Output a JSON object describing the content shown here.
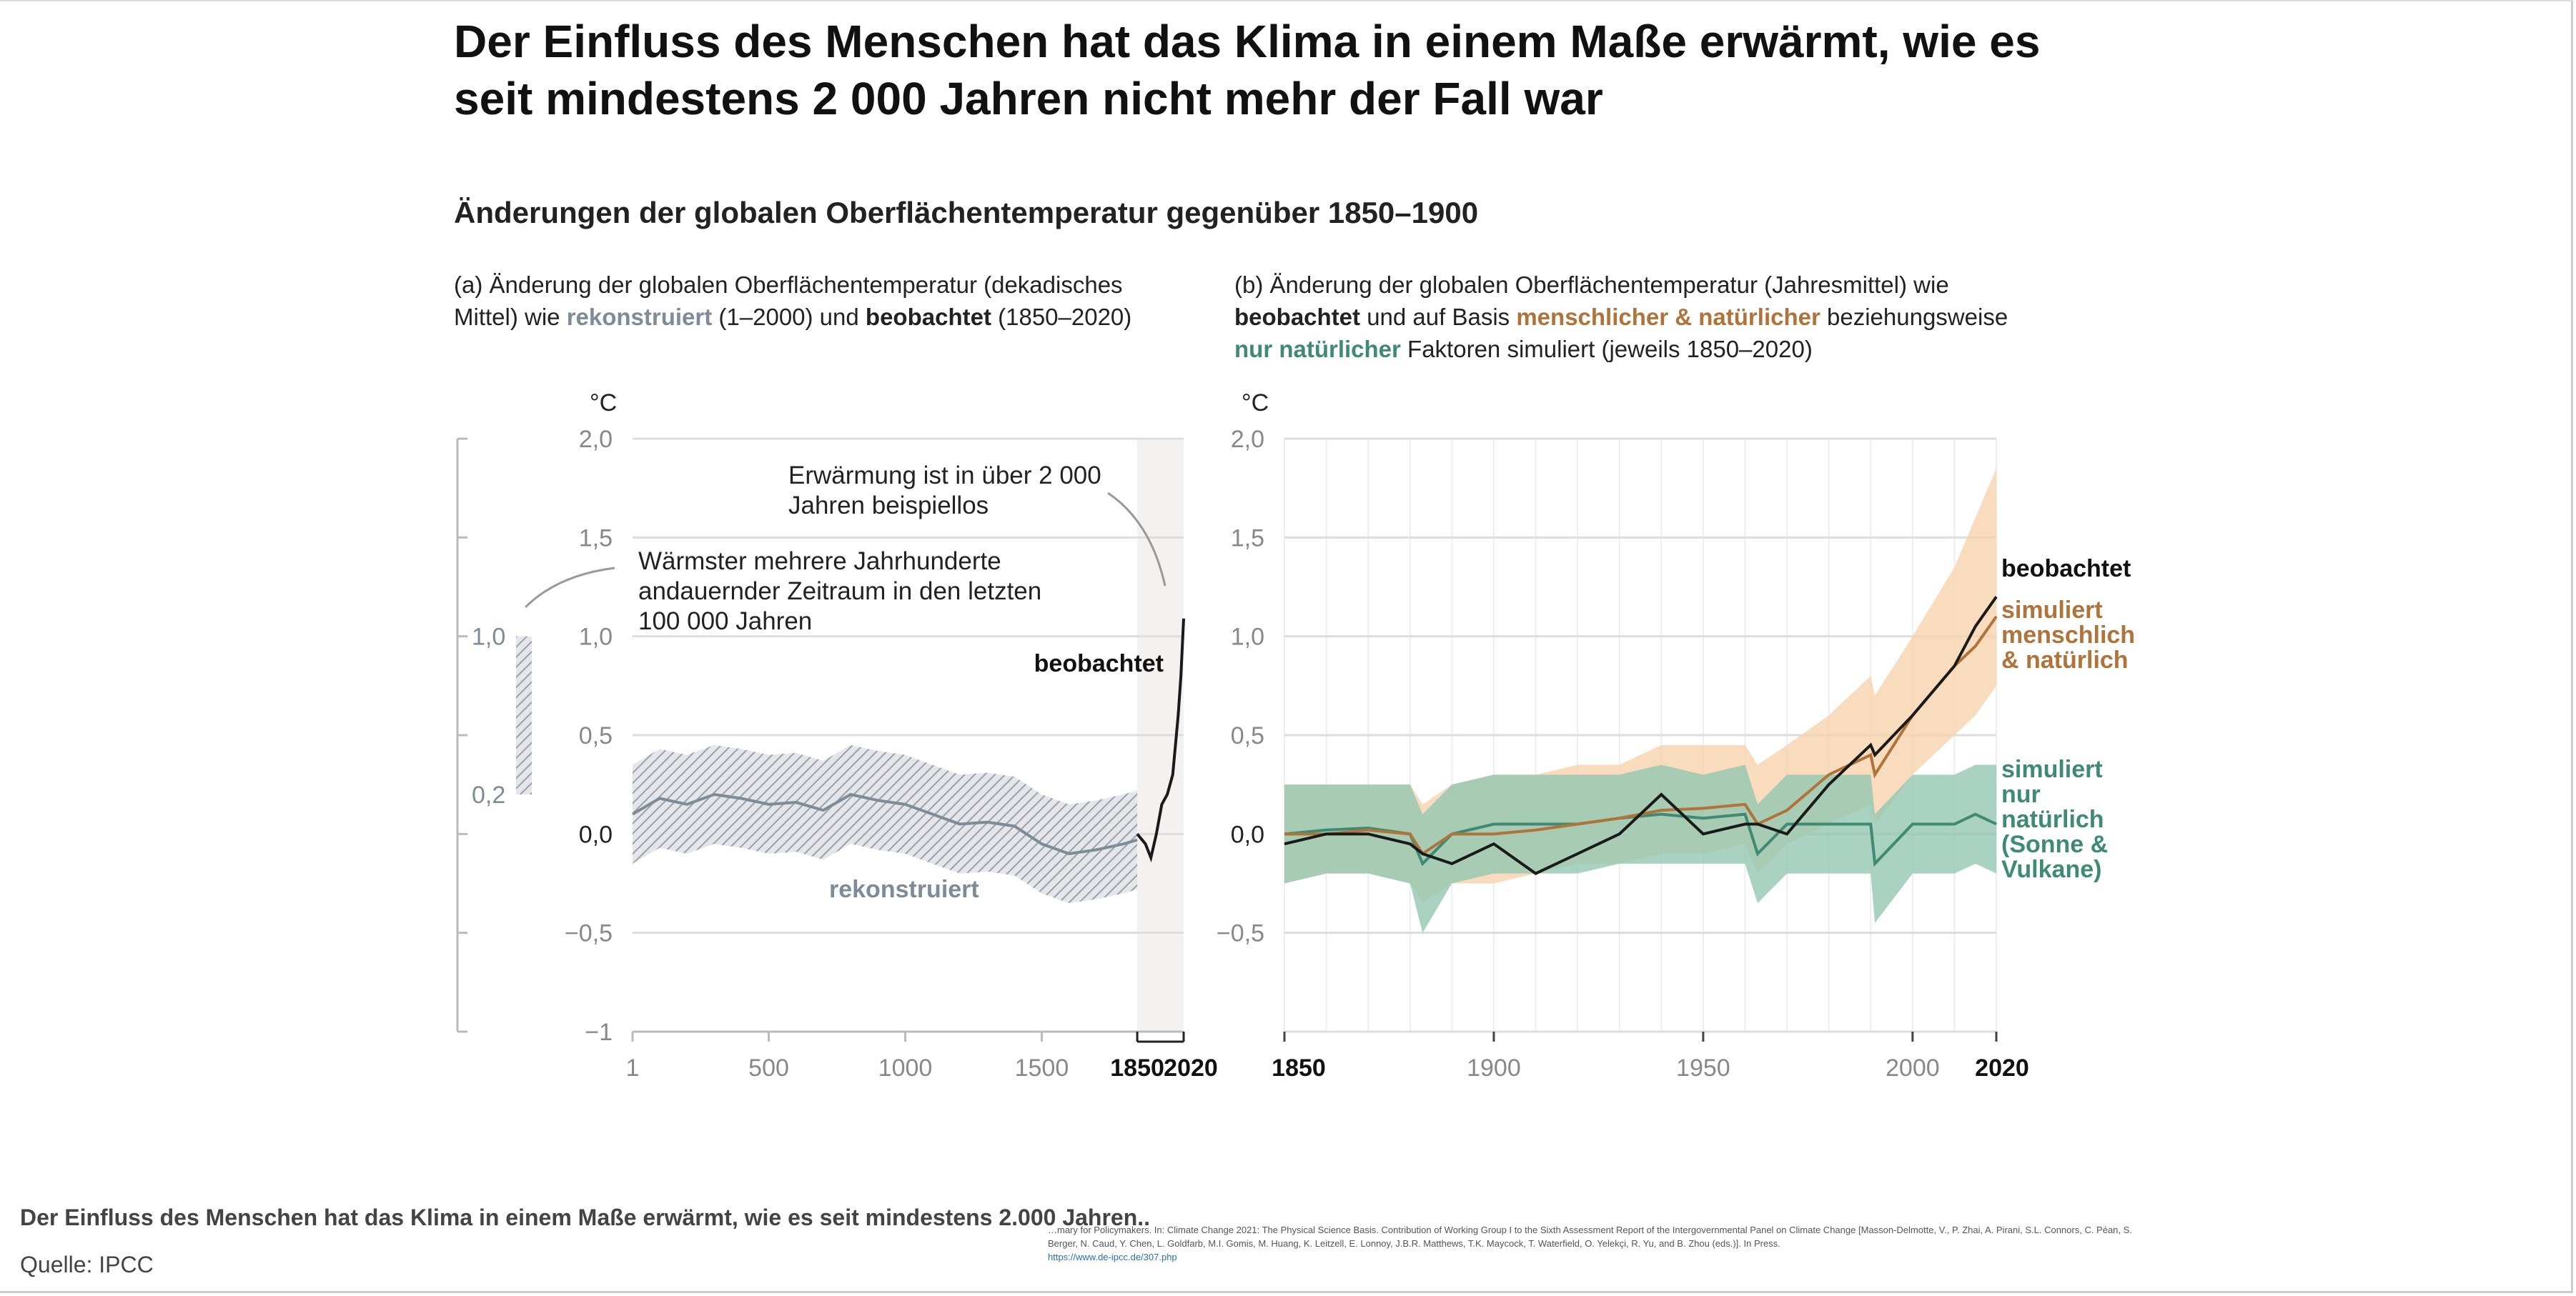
{
  "title_line1": "Der Einfluss des Menschen hat das Klima in einem Maße erwärmt, wie es",
  "title_line2": "seit mindestens 2 000 Jahren nicht mehr der Fall war",
  "subtitle": "Änderungen der globalen Oberflächentemperatur gegenüber 1850–1900",
  "caption": "Der Einfluss des Menschen hat das Klima in einem Maße erwärmt, wie es seit mindestens 2.000 Jahren..",
  "source": "Quelle: IPCC",
  "citation": "…mary for Policymakers. In: Climate Change 2021: The Physical Science Basis. Contribution of Working Group I to the Sixth Assessment Report of the Intergovernmental Panel on Climate Change [Masson-Delmotte, V., P. Zhai, A. Pirani, S.L. Connors, C. Péan, S. Berger, N. Caud, Y. Chen, L. Goldfarb, M.I. Gomis, M. Huang, K. Leitzell, E. Lonnoy, J.B.R. Matthews, T.K. Maycock, T. Waterfield, O. Yelekçi, R. Yu, and B. Zhou (eds.)]. In Press.",
  "citation_link": "https://www.de-ipcc.de/307.php",
  "colors": {
    "reconstructed": "#7d8c97",
    "observed": "#1a1a1a",
    "human_natural": "#b0733a",
    "human_natural_band": "#f8d2ae",
    "natural": "#3f8a72",
    "natural_band": "#93c7b1",
    "highlight_bg": "#f3f2f0"
  },
  "chart_data": [
    {
      "type": "line",
      "panel": "a",
      "caption_line1_a": "(a) Änderung der globalen Oberflächentemperatur (dekadisches",
      "caption_line2_a": "Mittel) wie ",
      "caption_rek": "rekonstruiert",
      "caption_line2_b": " (1–2000) und ",
      "caption_beo": "beobachtet",
      "caption_line2_c": " (1850–2020)",
      "ylabel": "°C",
      "ylim": [
        -1,
        2
      ],
      "xlim": [
        1,
        2020
      ],
      "yticks": [
        "2,0",
        "1,5",
        "1,0",
        "0,5",
        "0,0",
        "−0,5",
        "−1"
      ],
      "xticks": [
        "1",
        "500",
        "1000",
        "1500",
        "1850",
        "2020"
      ],
      "annotation_1": [
        "Erwärmung ist in über 2 000",
        "Jahren beispiellos"
      ],
      "annotation_2": [
        "Wärmster mehrere Jahrhunderte",
        "andauernder Zeitraum in den letzten",
        "100 000 Jahren"
      ],
      "side_bar": {
        "range": [
          0.2,
          1.0
        ],
        "labels": [
          "1,0",
          "0,2"
        ]
      },
      "series": [
        {
          "name": "rekonstruiert",
          "x": [
            1,
            100,
            200,
            300,
            400,
            500,
            600,
            700,
            800,
            900,
            1000,
            1100,
            1200,
            1300,
            1400,
            1500,
            1600,
            1700,
            1800,
            1850
          ],
          "values": [
            0.1,
            0.18,
            0.15,
            0.2,
            0.18,
            0.15,
            0.16,
            0.12,
            0.2,
            0.17,
            0.15,
            0.1,
            0.05,
            0.06,
            0.04,
            -0.05,
            -0.1,
            -0.08,
            -0.05,
            -0.03
          ],
          "band_halfwidth": 0.25
        },
        {
          "name": "beobachtet",
          "x": [
            1850,
            1880,
            1900,
            1920,
            1940,
            1960,
            1980,
            2000,
            2010,
            2020
          ],
          "values": [
            0.0,
            -0.05,
            -0.12,
            0.0,
            0.15,
            0.2,
            0.3,
            0.6,
            0.8,
            1.09
          ]
        }
      ]
    },
    {
      "type": "line",
      "panel": "b",
      "caption_line1": "(b) Änderung der globalen Oberflächentemperatur (Jahresmittel) wie",
      "caption_beo": "beobachtet",
      "caption_mid1": " und auf Basis ",
      "caption_hn": "menschlicher & natürlicher",
      "caption_mid2": " beziehungsweise",
      "caption_nat": "nur natürlicher",
      "caption_end": " Faktoren simuliert (jeweils 1850–2020)",
      "ylabel": "°C",
      "ylim": [
        -1,
        2
      ],
      "xlim": [
        1850,
        2020
      ],
      "yticks": [
        "2,0",
        "1,5",
        "1,0",
        "0,5",
        "0,0",
        "−0,5"
      ],
      "xticks": [
        "1850",
        "1900",
        "1950",
        "2000",
        "2020"
      ],
      "x": [
        1850,
        1860,
        1870,
        1880,
        1883,
        1890,
        1900,
        1910,
        1920,
        1930,
        1940,
        1950,
        1960,
        1963,
        1970,
        1980,
        1990,
        1991,
        2000,
        2010,
        2015,
        2020
      ],
      "series": [
        {
          "name": "beobachtet",
          "label": [
            "beobachtet"
          ],
          "values": [
            -0.05,
            0.0,
            0.0,
            -0.05,
            -0.1,
            -0.15,
            -0.05,
            -0.2,
            -0.1,
            0.0,
            0.2,
            0.0,
            0.05,
            0.05,
            0.0,
            0.25,
            0.45,
            0.4,
            0.6,
            0.85,
            1.05,
            1.2
          ]
        },
        {
          "name": "simuliert menschlich & natürlich",
          "label": [
            "simuliert",
            "menschlich",
            "& natürlich"
          ],
          "values": [
            0.0,
            0.0,
            0.02,
            0.0,
            -0.1,
            0.0,
            0.0,
            0.02,
            0.05,
            0.08,
            0.12,
            0.13,
            0.15,
            0.05,
            0.12,
            0.3,
            0.4,
            0.3,
            0.6,
            0.85,
            0.95,
            1.1
          ],
          "lower": [
            -0.25,
            -0.2,
            -0.2,
            -0.25,
            -0.35,
            -0.25,
            -0.25,
            -0.2,
            -0.15,
            -0.15,
            -0.1,
            -0.1,
            -0.05,
            -0.2,
            -0.05,
            0.05,
            0.15,
            0.05,
            0.3,
            0.5,
            0.6,
            0.75
          ],
          "upper": [
            0.25,
            0.25,
            0.25,
            0.25,
            0.15,
            0.25,
            0.3,
            0.3,
            0.35,
            0.35,
            0.45,
            0.45,
            0.45,
            0.35,
            0.45,
            0.6,
            0.8,
            0.7,
            1.0,
            1.35,
            1.6,
            1.85
          ]
        },
        {
          "name": "simuliert nur natürlich (Sonne & Vulkane)",
          "label": [
            "simuliert",
            "nur",
            "natürlich",
            "(Sonne &",
            "Vulkane)"
          ],
          "values": [
            0.0,
            0.02,
            0.03,
            0.0,
            -0.15,
            0.0,
            0.05,
            0.05,
            0.05,
            0.08,
            0.1,
            0.08,
            0.1,
            -0.1,
            0.05,
            0.05,
            0.05,
            -0.15,
            0.05,
            0.05,
            0.1,
            0.05
          ],
          "lower": [
            -0.25,
            -0.2,
            -0.2,
            -0.25,
            -0.5,
            -0.25,
            -0.2,
            -0.2,
            -0.2,
            -0.15,
            -0.15,
            -0.15,
            -0.15,
            -0.35,
            -0.2,
            -0.2,
            -0.2,
            -0.45,
            -0.2,
            -0.2,
            -0.15,
            -0.2
          ],
          "upper": [
            0.25,
            0.25,
            0.25,
            0.25,
            0.1,
            0.25,
            0.3,
            0.3,
            0.3,
            0.3,
            0.35,
            0.3,
            0.35,
            0.15,
            0.3,
            0.3,
            0.3,
            0.1,
            0.3,
            0.3,
            0.35,
            0.35
          ]
        }
      ]
    }
  ]
}
